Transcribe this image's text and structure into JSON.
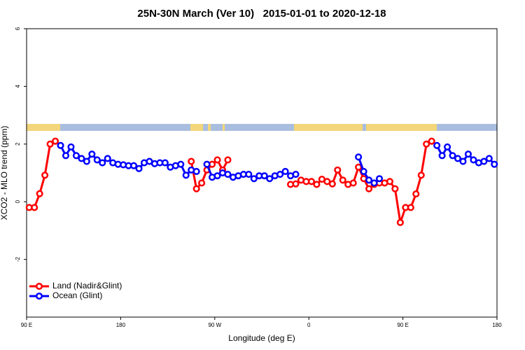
{
  "chart_data": {
    "type": "line",
    "title": "25N-30N March (Ver 10)   2015-01-01 to 2020-12-18",
    "x_label": "Longitude (deg E)",
    "y_label": "XCO2 - MLO trend (ppm)",
    "xlim": [
      90,
      540
    ],
    "ylim": [
      -4,
      6
    ],
    "xticks": [
      {
        "value": 90,
        "label": "90 E"
      },
      180,
      {
        "value": 270,
        "label": "90 W"
      },
      {
        "value": 360,
        "label": "0"
      },
      {
        "value": 450,
        "label": "90 E"
      },
      {
        "value": 540,
        "label": "180"
      }
    ],
    "yticks": [
      -2,
      0,
      2,
      4,
      6
    ],
    "grid": false,
    "legend_corner": "lower left",
    "x": [
      92.5,
      97.5,
      102.5,
      107.5,
      112.5,
      117.5,
      122.5,
      127.5,
      132.5,
      137.5,
      142.5,
      147.5,
      152.5,
      157.5,
      162.5,
      167.5,
      172.5,
      177.5,
      182.5,
      187.5,
      192.5,
      197.5,
      202.5,
      207.5,
      212.5,
      217.5,
      222.5,
      227.5,
      232.5,
      237.5,
      242.5,
      247.5,
      252.5,
      257.5,
      262.5,
      267.5,
      272.5,
      277.5,
      282.5,
      287.5,
      292.5,
      297.5,
      302.5,
      307.5,
      312.5,
      317.5,
      322.5,
      327.5,
      332.5,
      337.5,
      342.5,
      347.5,
      352.5,
      357.5,
      362.5,
      367.5,
      372.5,
      377.5,
      382.5,
      387.5,
      392.5,
      397.5,
      402.5,
      407.5,
      412.5,
      417.5,
      422.5,
      427.5,
      432.5,
      437.5,
      442.5,
      447.5,
      452.5,
      457.5,
      462.5,
      467.5,
      472.5,
      477.5,
      482.5,
      487.5,
      492.5,
      497.5,
      502.5,
      507.5,
      512.5,
      517.5,
      522.5,
      527.5,
      532.5,
      537.5
    ],
    "series": [
      {
        "name": "Land (Nadir&Glint)",
        "color": "#ff0000",
        "values": [
          -0.2,
          -0.2,
          0.28,
          0.92,
          2.0,
          2.1,
          null,
          null,
          null,
          null,
          null,
          null,
          null,
          null,
          null,
          null,
          null,
          null,
          null,
          null,
          null,
          null,
          null,
          null,
          null,
          null,
          null,
          null,
          null,
          null,
          null,
          1.4,
          0.45,
          0.65,
          1.1,
          1.3,
          1.45,
          1.1,
          1.45,
          null,
          null,
          null,
          null,
          null,
          null,
          null,
          null,
          null,
          null,
          null,
          0.6,
          0.62,
          0.75,
          0.7,
          0.7,
          0.6,
          0.78,
          0.7,
          0.62,
          1.1,
          0.75,
          0.6,
          0.65,
          1.2,
          0.8,
          0.45,
          0.6,
          0.65,
          0.65,
          0.7,
          0.45,
          -0.72,
          -0.2,
          -0.2,
          0.27,
          0.92,
          2.0,
          2.1,
          null,
          null,
          null,
          null,
          null,
          null,
          null,
          null,
          null,
          null,
          null,
          null
        ]
      },
      {
        "name": "Ocean (Glint)",
        "color": "#0000ff",
        "values": [
          null,
          null,
          null,
          null,
          null,
          null,
          1.95,
          1.6,
          1.9,
          1.6,
          1.5,
          1.4,
          1.65,
          1.45,
          1.35,
          1.5,
          1.35,
          1.3,
          1.28,
          1.25,
          1.25,
          1.15,
          1.35,
          1.4,
          1.32,
          1.35,
          1.35,
          1.2,
          1.25,
          1.3,
          0.92,
          1.1,
          1.05,
          null,
          1.3,
          0.85,
          0.9,
          1.0,
          0.95,
          0.85,
          0.9,
          0.95,
          0.95,
          0.8,
          0.9,
          0.9,
          0.8,
          0.9,
          0.95,
          1.05,
          0.9,
          0.95,
          null,
          null,
          null,
          null,
          null,
          null,
          null,
          null,
          null,
          null,
          null,
          1.55,
          1.05,
          0.75,
          0.65,
          0.8,
          null,
          null,
          null,
          null,
          null,
          null,
          null,
          null,
          null,
          null,
          1.95,
          1.6,
          1.9,
          1.6,
          1.5,
          1.4,
          1.65,
          1.45,
          1.35,
          1.4,
          1.5,
          1.3
        ]
      }
    ]
  }
}
